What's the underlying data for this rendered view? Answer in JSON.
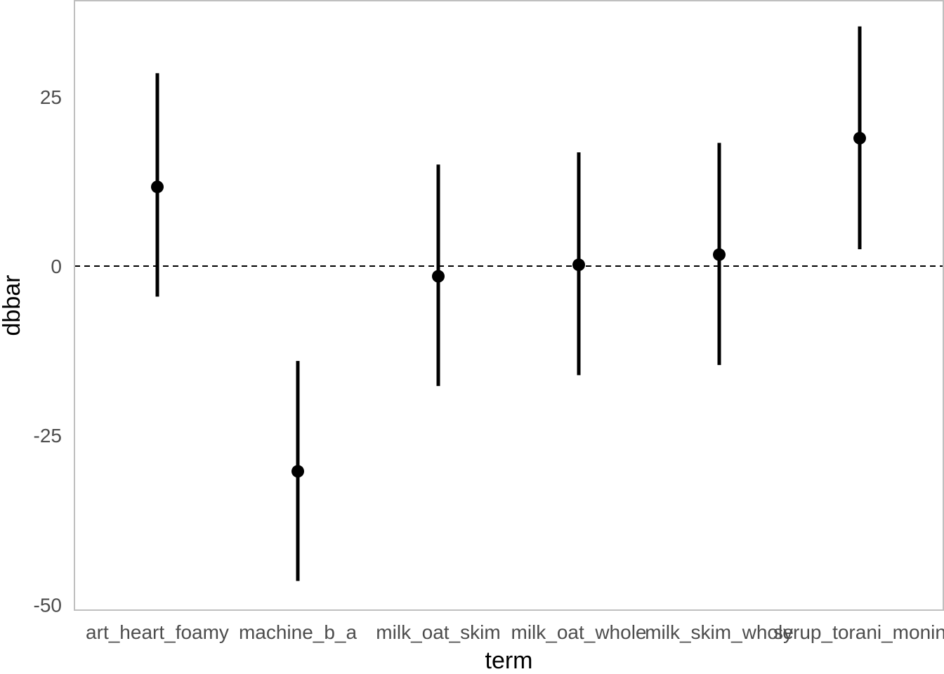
{
  "chart_data": {
    "type": "scatter",
    "subtype": "pointrange",
    "xlabel": "term",
    "ylabel": "dbbar",
    "categories": [
      "art_heart_foamy",
      "machine_b_a",
      "milk_oat_skim",
      "milk_oat_whole",
      "milk_skim_whole",
      "syrup_torani_monin"
    ],
    "estimate": [
      11.7,
      -30.3,
      -1.5,
      0.2,
      1.7,
      18.9
    ],
    "lower": [
      -4.5,
      -46.5,
      -17.7,
      -16.1,
      -14.6,
      2.5
    ],
    "upper": [
      28.5,
      -14.0,
      15.0,
      16.8,
      18.2,
      35.4
    ],
    "ylim": [
      -50.8,
      39.2
    ],
    "yticks": [
      25,
      0,
      -25,
      -50
    ],
    "ytick_labels": [
      "25",
      "0",
      "-25",
      "-50"
    ],
    "reference_line": {
      "y": 0,
      "style": "dashed"
    },
    "grid": false,
    "legend": "none",
    "colors": {
      "points": "#000000",
      "panel_border": "#bfbfbf",
      "tick_label": "#4d4d4d"
    }
  }
}
